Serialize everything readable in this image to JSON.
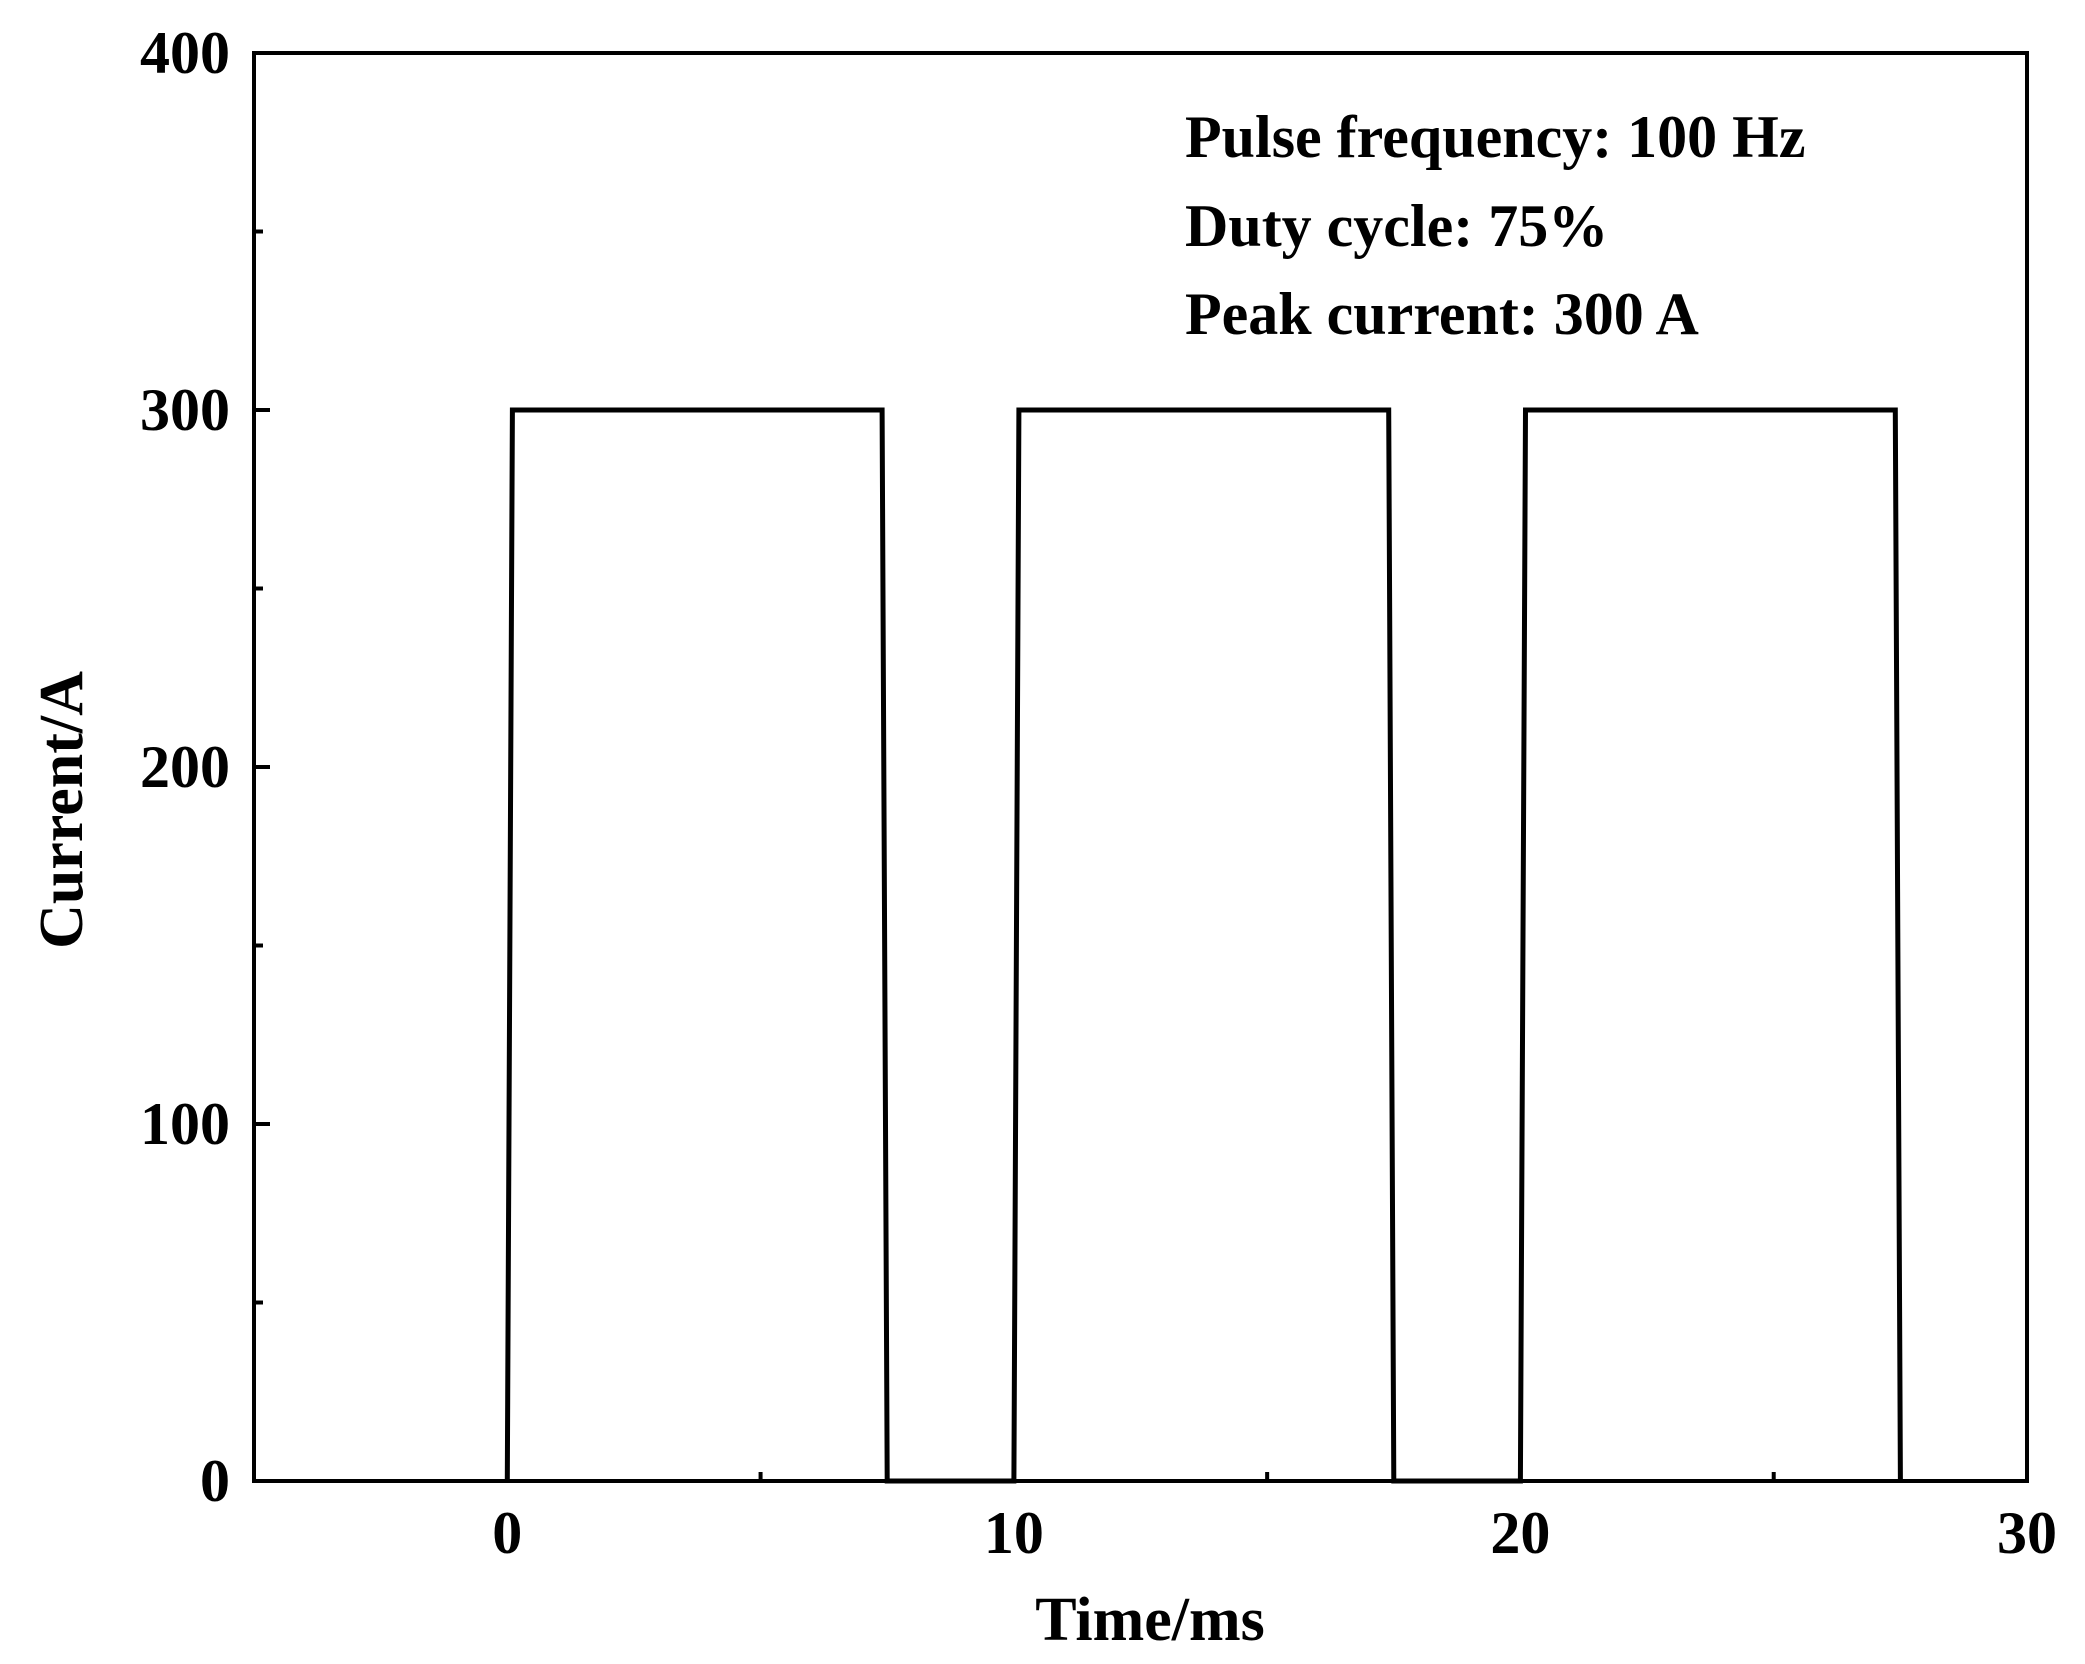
{
  "chart_data": {
    "type": "line",
    "title": "",
    "xlabel": "Time/ms",
    "ylabel": "Current/A",
    "xlim": [
      -5,
      30
    ],
    "ylim": [
      0,
      400
    ],
    "x_ticks": [
      0,
      10,
      20,
      30
    ],
    "x_tick_labels": [
      "0",
      "10",
      "20",
      "30"
    ],
    "y_ticks": [
      0,
      100,
      200,
      300,
      400
    ],
    "y_tick_labels": [
      "0",
      "100",
      "200",
      "300",
      "400"
    ],
    "x_minor_ticks": [
      5,
      15,
      25
    ],
    "y_minor_ticks": [
      50,
      150,
      250,
      350
    ],
    "grid": false,
    "annotations": [
      "Pulse frequency: 100 Hz",
      "Duty cycle: 75%",
      "Peak current: 300 A"
    ],
    "series": [
      {
        "color": "#000000",
        "x": [
          0,
          0.1,
          7.4,
          7.5,
          10,
          10.1,
          17.4,
          17.5,
          20,
          20.1,
          27.4,
          27.5
        ],
        "y": [
          0,
          300,
          300,
          0,
          0,
          300,
          300,
          0,
          0,
          300,
          300,
          0
        ]
      }
    ]
  }
}
